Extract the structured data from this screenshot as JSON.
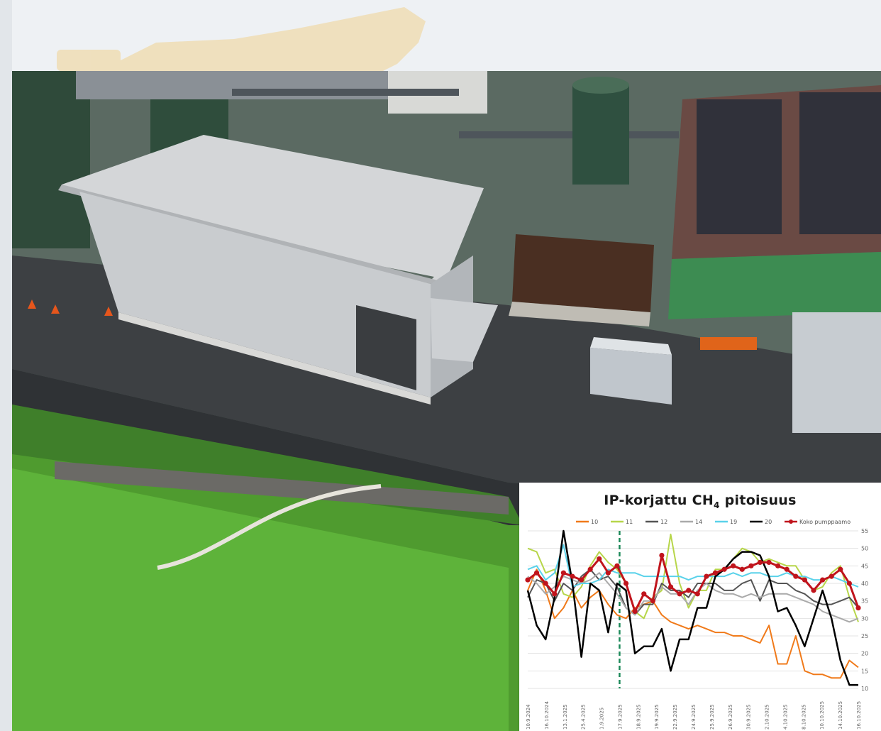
{
  "chart_data": {
    "type": "line",
    "title": "IP-korjattu CH",
    "title_subscript": "4",
    "title_suffix": "pitoisuus",
    "ylim": [
      10,
      55
    ],
    "y_ticks": [
      10,
      15,
      20,
      25,
      30,
      35,
      40,
      45,
      50,
      55
    ],
    "grid": true,
    "legend_position": "top",
    "x_tick_labels": [
      "10.9.2024",
      "16.10.2024",
      "13.1.2025",
      "25.4.2025",
      "1.9.2025",
      "17.9.2025",
      "18.9.2025",
      "19.9.2025",
      "22.9.2025",
      "24.9.2025",
      "25.9.2025",
      "26.9.2025",
      "30.9.2025",
      "2.10.2025",
      "4.10.2025",
      "8.10.2025",
      "10.10.2025",
      "14.10.2025",
      "16.10.2025"
    ],
    "marker_line_label_index": 5,
    "series": [
      {
        "name": "10",
        "color": "#f07a1a",
        "width": 2,
        "values": [
          38,
          44,
          38,
          30,
          33,
          38,
          33,
          36,
          38,
          34,
          31,
          30,
          33,
          34,
          35,
          31,
          29,
          28,
          27,
          28,
          27,
          26,
          26,
          25,
          25,
          24,
          23,
          28,
          17,
          17,
          25,
          15,
          14,
          14,
          13,
          13,
          18,
          16
        ]
      },
      {
        "name": "11",
        "color": "#b7d64a",
        "width": 2,
        "values": [
          50,
          49,
          43,
          44,
          37,
          36,
          39,
          45,
          49,
          46,
          44,
          40,
          32,
          30,
          36,
          38,
          54,
          40,
          33,
          38,
          38,
          44,
          44,
          47,
          50,
          49,
          46,
          47,
          46,
          45,
          45,
          41,
          38,
          39,
          43,
          45,
          36,
          29
        ]
      },
      {
        "name": "12",
        "color": "#555555",
        "width": 2,
        "values": [
          36,
          41,
          40,
          35,
          40,
          38,
          42,
          44,
          41,
          42,
          39,
          33,
          31,
          34,
          34,
          40,
          38,
          38,
          36,
          40,
          40,
          40,
          38,
          38,
          40,
          41,
          35,
          41,
          40,
          40,
          38,
          37,
          35,
          34,
          34,
          35,
          36,
          33
        ]
      },
      {
        "name": "14",
        "color": "#aaaaaa",
        "width": 2,
        "values": [
          42,
          40,
          37,
          39,
          42,
          41,
          40,
          41,
          43,
          40,
          37,
          33,
          31,
          35,
          35,
          39,
          37,
          37,
          34,
          38,
          40,
          38,
          37,
          37,
          36,
          37,
          36,
          37,
          37,
          37,
          36,
          35,
          34,
          32,
          31,
          30,
          29,
          30
        ]
      },
      {
        "name": "19",
        "color": "#5ad2ea",
        "width": 2,
        "values": [
          44,
          45,
          41,
          43,
          51,
          39,
          40,
          40,
          41,
          44,
          43,
          43,
          43,
          42,
          42,
          42,
          42,
          42,
          41,
          42,
          42,
          42,
          42,
          43,
          42,
          43,
          43,
          42,
          42,
          43,
          42,
          42,
          41,
          41,
          42,
          41,
          40,
          39
        ]
      },
      {
        "name": "20",
        "color": "#000000",
        "width": 2.5,
        "values": [
          38,
          28,
          24,
          36,
          55,
          40,
          19,
          40,
          38,
          26,
          40,
          38,
          20,
          22,
          22,
          27,
          15,
          24,
          24,
          33,
          33,
          42,
          44,
          47,
          49,
          49,
          48,
          42,
          32,
          33,
          28,
          22,
          30,
          38,
          30,
          18,
          11,
          11
        ]
      },
      {
        "name": "Koko pumppaamo",
        "color": "#c0141c",
        "width": 3,
        "markers": true,
        "values": [
          41,
          43,
          40,
          37,
          43,
          42,
          41,
          44,
          47,
          43,
          45,
          40,
          32,
          37,
          35,
          48,
          39,
          37,
          38,
          37,
          42,
          43,
          44,
          45,
          44,
          45,
          46,
          46,
          45,
          44,
          42,
          41,
          38,
          41,
          42,
          44,
          40,
          33
        ]
      }
    ]
  }
}
